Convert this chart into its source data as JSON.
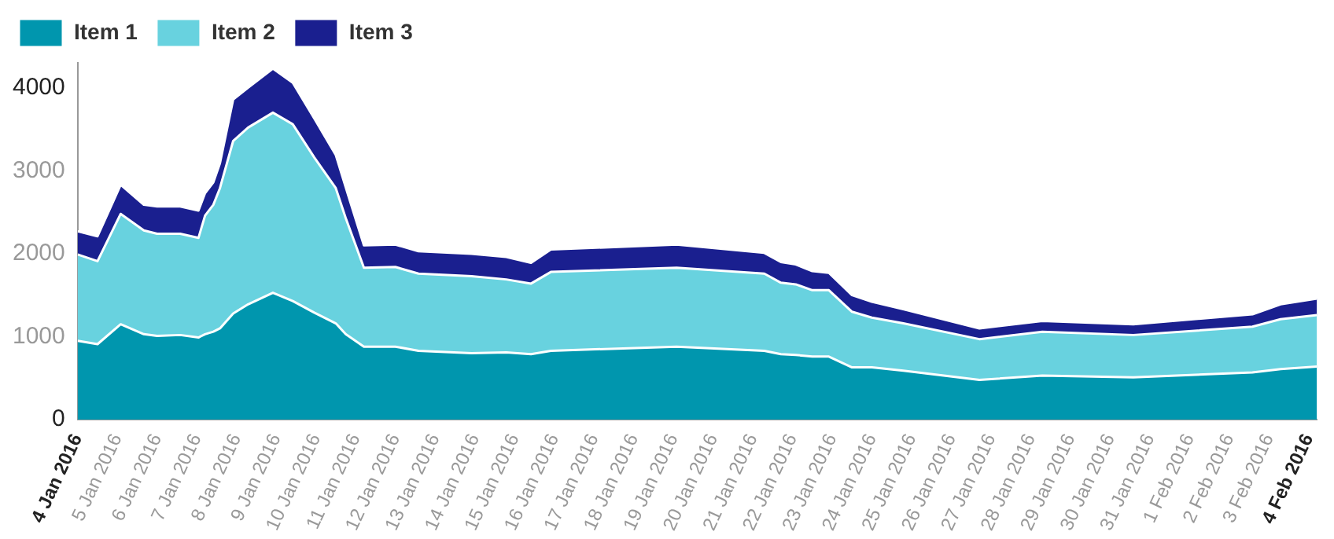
{
  "chart_data": {
    "type": "area",
    "stacked": true,
    "legend": "top left",
    "grid": false,
    "marker": "none",
    "x": [
      "2016-01-04T00:00",
      "2016-01-04T12:00",
      "2016-01-05T02:00",
      "2016-01-05T16:00",
      "2016-01-06T00:00",
      "2016-01-06T14:00",
      "2016-01-07T01:00",
      "2016-01-07T05:00",
      "2016-01-07T10:00",
      "2016-01-07T14:00",
      "2016-01-07T22:00",
      "2016-01-08T07:00",
      "2016-01-08T22:00",
      "2016-01-09T10:00",
      "2016-01-09T23:00",
      "2016-01-10T12:00",
      "2016-01-10T18:00",
      "2016-01-11T05:00",
      "2016-01-12T00:00",
      "2016-01-12T14:00",
      "2016-01-13T22:00",
      "2016-01-14T19:00",
      "2016-01-15T10:00",
      "2016-01-15T22:00",
      "2016-01-19T02:00",
      "2016-01-21T07:00",
      "2016-01-21T17:00",
      "2016-01-22T02:00",
      "2016-01-22T12:00",
      "2016-01-22T22:00",
      "2016-01-23T12:00",
      "2016-01-24T00:00",
      "2016-01-24T19:00",
      "2016-01-26T17:00",
      "2016-01-28T07:00",
      "2016-01-30T14:00",
      "2016-02-02T14:00",
      "2016-02-03T07:00",
      "2016-02-04T05:00"
    ],
    "series": [
      {
        "name": "Item 1",
        "color": "#0096ae",
        "values": [
          950,
          910,
          1150,
          1030,
          1010,
          1020,
          990,
          1030,
          1060,
          1100,
          1280,
          1390,
          1530,
          1430,
          1290,
          1160,
          1030,
          880,
          880,
          830,
          800,
          810,
          790,
          830,
          880,
          830,
          790,
          780,
          760,
          760,
          630,
          630,
          590,
          480,
          530,
          510,
          570,
          610,
          640
        ]
      },
      {
        "name": "Item 2",
        "color": "#68d2df",
        "values": [
          1040,
          1000,
          1330,
          1250,
          1230,
          1220,
          1200,
          1430,
          1530,
          1690,
          2080,
          2130,
          2170,
          2130,
          1870,
          1630,
          1400,
          950,
          960,
          930,
          930,
          880,
          850,
          950,
          950,
          930,
          860,
          850,
          800,
          800,
          670,
          600,
          570,
          490,
          530,
          510,
          550,
          600,
          620
        ]
      },
      {
        "name": "Item 3",
        "color": "#1a1f8f",
        "values": [
          280,
          300,
          350,
          310,
          330,
          330,
          330,
          270,
          270,
          300,
          500,
          480,
          530,
          500,
          470,
          400,
          370,
          270,
          270,
          270,
          270,
          270,
          250,
          270,
          280,
          250,
          250,
          240,
          230,
          210,
          200,
          190,
          170,
          130,
          130,
          130,
          150,
          180,
          200
        ]
      }
    ],
    "xlim": [
      "2016-01-04T00:00",
      "2016-02-04T05:00"
    ],
    "xticks": [
      {
        "value": "2016-01-04",
        "label": "4 Jan 2016"
      },
      {
        "value": "2016-01-05",
        "label": "5 Jan 2016"
      },
      {
        "value": "2016-01-06",
        "label": "6 Jan 2016"
      },
      {
        "value": "2016-01-07",
        "label": "7 Jan 2016"
      },
      {
        "value": "2016-01-08",
        "label": "8 Jan 2016"
      },
      {
        "value": "2016-01-09",
        "label": "9 Jan 2016"
      },
      {
        "value": "2016-01-10",
        "label": "10 Jan 2016"
      },
      {
        "value": "2016-01-11",
        "label": "11 Jan 2016"
      },
      {
        "value": "2016-01-12",
        "label": "12 Jan 2016"
      },
      {
        "value": "2016-01-13",
        "label": "13 Jan 2016"
      },
      {
        "value": "2016-01-14",
        "label": "14 Jan 2016"
      },
      {
        "value": "2016-01-15",
        "label": "15 Jan 2016"
      },
      {
        "value": "2016-01-16",
        "label": "16 Jan 2016"
      },
      {
        "value": "2016-01-17",
        "label": "17 Jan 2016"
      },
      {
        "value": "2016-01-18",
        "label": "18 Jan 2016"
      },
      {
        "value": "2016-01-19",
        "label": "19 Jan 2016"
      },
      {
        "value": "2016-01-20",
        "label": "20 Jan 2016"
      },
      {
        "value": "2016-01-21",
        "label": "21 Jan 2016"
      },
      {
        "value": "2016-01-22",
        "label": "22 Jan 2016"
      },
      {
        "value": "2016-01-23",
        "label": "23 Jan 2016"
      },
      {
        "value": "2016-01-24",
        "label": "24 Jan 2016"
      },
      {
        "value": "2016-01-25",
        "label": "25 Jan 2016"
      },
      {
        "value": "2016-01-26",
        "label": "26 Jan 2016"
      },
      {
        "value": "2016-01-27",
        "label": "27 Jan 2016"
      },
      {
        "value": "2016-01-28",
        "label": "28 Jan 2016"
      },
      {
        "value": "2016-01-29",
        "label": "29 Jan 2016"
      },
      {
        "value": "2016-01-30",
        "label": "30 Jan 2016"
      },
      {
        "value": "2016-01-31",
        "label": "31 Jan 2016"
      },
      {
        "value": "2016-02-01",
        "label": "1 Feb 2016"
      },
      {
        "value": "2016-02-02",
        "label": "2 Feb 2016"
      },
      {
        "value": "2016-02-03",
        "label": "3 Feb 2016"
      },
      {
        "value": "2016-02-04",
        "label": "4 Feb 2016"
      }
    ],
    "ylim": [
      0,
      4300
    ],
    "yticks": [
      0,
      1000,
      2000,
      3000,
      4000
    ]
  }
}
